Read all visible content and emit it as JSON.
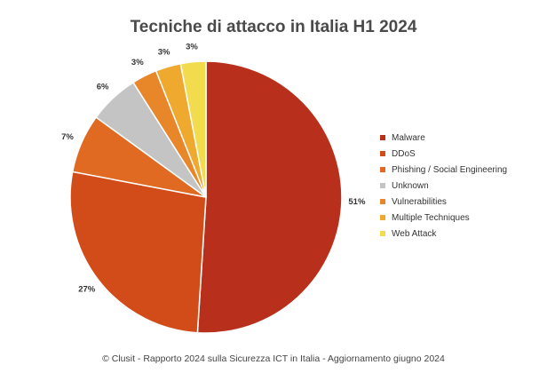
{
  "chart_data": {
    "type": "pie",
    "title": "Tecniche di attacco in Italia H1 2024",
    "categories": [
      "Malware",
      "DDoS",
      "Phishing / Social Engineering",
      "Unknown",
      "Vulnerabilities",
      "Multiple Techniques",
      "Web Attack"
    ],
    "values": [
      51,
      27,
      7,
      6,
      3,
      3,
      3
    ],
    "data_labels": [
      "51%",
      "27%",
      "7%",
      "6%",
      "3%",
      "3%",
      "3%"
    ],
    "colors": [
      "#b8301c",
      "#d24c1a",
      "#e06a22",
      "#c4c4c4",
      "#e8862a",
      "#eea92e",
      "#f2dc4e"
    ],
    "start_angle": "12 o'clock",
    "direction": "clockwise",
    "legend": "right"
  },
  "footer": "© Clusit - Rapporto 2024 sulla Sicurezza ICT in Italia - Aggiornamento giugno 2024"
}
